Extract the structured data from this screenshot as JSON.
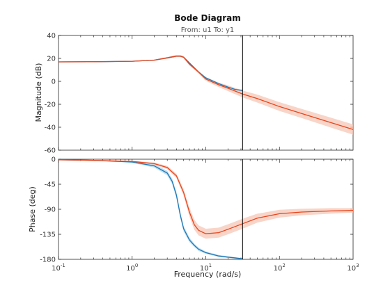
{
  "chart_data": {
    "type": "line",
    "title": "Bode Diagram",
    "subtitle": "From: u1  To: y1",
    "xlabel": "Frequency  (rad/s)",
    "xscale": "log",
    "xlim": [
      0.1,
      1000
    ],
    "xticks": [
      0.1,
      1,
      10,
      100,
      1000
    ],
    "xtick_labels": [
      {
        "base": "10",
        "exp": "-1"
      },
      {
        "base": "10",
        "exp": "0"
      },
      {
        "base": "10",
        "exp": "1"
      },
      {
        "base": "10",
        "exp": "2"
      },
      {
        "base": "10",
        "exp": "3"
      }
    ],
    "vertical_line_x": 31.6,
    "panels": [
      {
        "name": "magnitude",
        "ylabel": "Magnitude (dB)",
        "ylim": [
          -60,
          40
        ],
        "yticks": [
          40,
          20,
          0,
          -20,
          -40,
          -60
        ],
        "ytick_labels": [
          "40",
          "20",
          "0",
          "-20",
          "-40",
          "-60"
        ],
        "series": [
          {
            "color": "#1f77b4",
            "band_color": "#a9d6f0",
            "x": [
              0.1,
              0.3,
              1,
              2,
              3,
              4,
              4.5,
              5,
              6,
              8,
              10,
              15,
              20,
              25,
              31.6
            ],
            "values": [
              17,
              17.1,
              17.5,
              18.5,
              20.5,
              22,
              22,
              21,
              16,
              8,
              3,
              -2,
              -5,
              -7,
              -8
            ],
            "band": [
              0.3,
              0.3,
              0.3,
              0.4,
              0.6,
              0.8,
              0.8,
              0.8,
              0.8,
              0.8,
              0.8,
              0.8,
              0.8,
              0.8,
              0.8
            ]
          },
          {
            "color": "#e8451c",
            "band_color": "#f6c7b6",
            "x": [
              0.1,
              0.3,
              1,
              2,
              3,
              4,
              4.5,
              5,
              6,
              8,
              10,
              15,
              20,
              31.6,
              50,
              100,
              200,
              500,
              1000
            ],
            "values": [
              17,
              17.1,
              17.5,
              18.5,
              20.5,
              22,
              22,
              21,
              15,
              8,
              2,
              -3,
              -6,
              -11,
              -15,
              -22,
              -28,
              -36,
              -42
            ],
            "band": [
              0.3,
              0.3,
              0.3,
              0.5,
              0.8,
              1,
              1,
              1,
              1.2,
              1.3,
              1.5,
              2,
              2.5,
              3,
              3.5,
              3.8,
              4,
              4.3,
              4.5
            ]
          }
        ]
      },
      {
        "name": "phase",
        "ylabel": "Phase (deg)",
        "ylim": [
          -180,
          0
        ],
        "yticks": [
          0,
          -45,
          -90,
          -135,
          -180
        ],
        "ytick_labels": [
          "0",
          "-45",
          "-90",
          "-135",
          "-180"
        ],
        "series": [
          {
            "color": "#1f77b4",
            "band_color": "#a9d6f0",
            "x": [
              0.1,
              0.3,
              1,
              2,
              3,
              3.5,
              4,
              4.5,
              5,
              6,
              7,
              8,
              10,
              15,
              20,
              31.6
            ],
            "values": [
              -1,
              -2,
              -5,
              -12,
              -25,
              -40,
              -65,
              -100,
              -125,
              -145,
              -155,
              -162,
              -168,
              -174,
              -176,
              -179
            ],
            "band": [
              0.5,
              0.8,
              1.5,
              3,
              4,
              5,
              6,
              6,
              5,
              4,
              3,
              3,
              2,
              2,
              1.5,
              1
            ]
          },
          {
            "color": "#e8451c",
            "band_color": "#f6c7b6",
            "x": [
              0.1,
              0.3,
              1,
              2,
              3,
              4,
              5,
              6,
              7,
              8,
              10,
              15,
              20,
              31.6,
              50,
              100,
              200,
              500,
              1000
            ],
            "values": [
              -1,
              -2,
              -4,
              -8,
              -15,
              -30,
              -60,
              -95,
              -118,
              -128,
              -134,
              -132,
              -126,
              -116,
              -106,
              -98,
              -95,
              -93,
              -92
            ],
            "band": [
              0.5,
              0.8,
              1.2,
              2,
              3,
              4,
              6,
              8,
              9,
              9,
              9,
              9,
              9,
              9,
              8,
              7,
              6,
              5,
              4
            ]
          }
        ]
      }
    ]
  }
}
